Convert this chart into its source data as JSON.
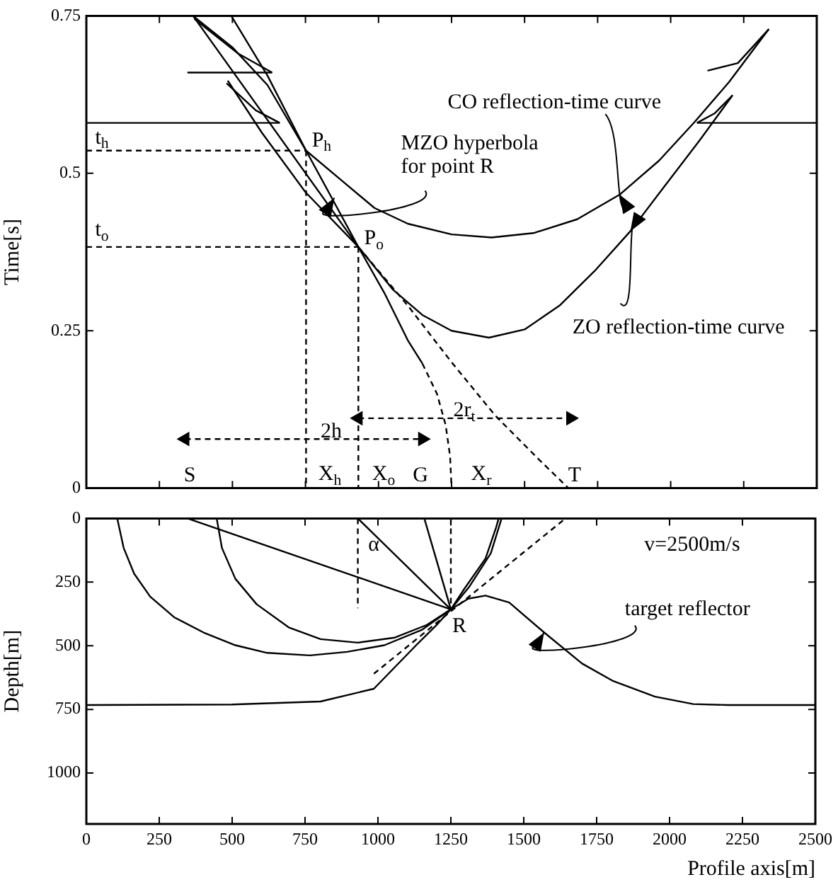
{
  "chart_data": [
    {
      "type": "line",
      "ylabel": "Time[s]",
      "xlim": [
        0,
        2500
      ],
      "xticks": [
        0,
        250,
        500,
        750,
        1000,
        1250,
        1500,
        1750,
        2000,
        2250,
        2500
      ],
      "ylim": [
        0,
        0.75
      ],
      "yticks": [
        0,
        0.25,
        0.5,
        0.75
      ],
      "tick_labels": "y",
      "legend": false,
      "marker": "none",
      "line_style": "solid",
      "series": [
        {
          "color": "#000000",
          "x": [
            365,
            500,
            620,
            752,
            870,
            986,
            1100,
            1250,
            1387,
            1530,
            1680,
            1825,
            1960,
            2081,
            2200,
            2336
          ],
          "values": [
            0.75,
            0.7,
            0.64,
            0.536,
            0.49,
            0.445,
            0.42,
            0.403,
            0.398,
            0.405,
            0.427,
            0.466,
            0.52,
            0.581,
            0.645,
            0.729
          ]
        },
        {
          "color": "#000000",
          "x": [
            484,
            600,
            750,
            931,
            1050,
            1150,
            1250,
            1378,
            1500,
            1620,
            1740,
            1862,
            1980,
            2100,
            2212
          ],
          "values": [
            0.647,
            0.565,
            0.47,
            0.383,
            0.315,
            0.275,
            0.25,
            0.239,
            0.252,
            0.29,
            0.345,
            0.408,
            0.48,
            0.553,
            0.624
          ]
        },
        {
          "color": "#000000",
          "x": [
            496,
            620,
            752,
            840,
            931,
            1020,
            1100,
            1150
          ],
          "values": [
            0.75,
            0.655,
            0.536,
            0.461,
            0.383,
            0.31,
            0.235,
            0.198
          ]
        },
        {
          "color": "#000000",
          "line_style": "dashed",
          "x": [
            1150,
            1200,
            1230,
            1245,
            1250
          ],
          "values": [
            0.198,
            0.15,
            0.1,
            0.05,
            0
          ]
        },
        {
          "color": "#000000",
          "x": [
            365,
            931
          ],
          "values": [
            0.75,
            0.383
          ]
        },
        {
          "color": "#000000",
          "line_style": "dashed",
          "x": [
            931,
            1100,
            1250,
            1400,
            1550,
            1650
          ],
          "values": [
            0.383,
            0.29,
            0.2,
            0.115,
            0.045,
            0
          ]
        },
        {
          "color": "#000000",
          "x": [
            0,
            662
          ],
          "values": [
            0.58,
            0.58
          ]
        },
        {
          "color": "#000000",
          "x": [
            480,
            580,
            662
          ],
          "values": [
            0.643,
            0.6,
            0.58
          ]
        },
        {
          "color": "#000000",
          "x": [
            346,
            636
          ],
          "values": [
            0.66,
            0.66
          ]
        },
        {
          "color": "#000000",
          "x": [
            370,
            520,
            636
          ],
          "values": [
            0.745,
            0.69,
            0.66
          ]
        },
        {
          "color": "#000000",
          "x": [
            2090,
            2500
          ],
          "values": [
            0.58,
            0.58
          ]
        },
        {
          "color": "#000000",
          "x": [
            2090,
            2150,
            2212
          ],
          "values": [
            0.58,
            0.595,
            0.624
          ]
        },
        {
          "color": "#000000",
          "x": [
            2126,
            2230,
            2336
          ],
          "values": [
            0.663,
            0.675,
            0.729
          ]
        },
        {
          "color": "#000000",
          "line_style": "dashed",
          "x": [
            0,
            752
          ],
          "values": [
            0.536,
            0.536
          ]
        },
        {
          "color": "#000000",
          "line_style": "dashed",
          "x": [
            752,
            752
          ],
          "values": [
            0.536,
            0
          ]
        },
        {
          "color": "#000000",
          "line_style": "dashed",
          "x": [
            0,
            931
          ],
          "values": [
            0.383,
            0.383
          ]
        },
        {
          "color": "#000000",
          "line_style": "dashed",
          "x": [
            931,
            931
          ],
          "values": [
            0.383,
            0
          ]
        },
        {
          "color": "#000000",
          "line_style": "dashed",
          "marker": "triangle",
          "x": [
            338,
            1150
          ],
          "values": [
            0.078,
            0.078
          ]
        },
        {
          "color": "#000000",
          "line_style": "dashed",
          "marker": "triangle",
          "x": [
            931,
            1657
          ],
          "values": [
            0.111,
            0.111
          ]
        }
      ],
      "annotations": [
        {
          "text": "CO reflection-time curve",
          "x": 1825,
          "y": 0.466
        },
        {
          "text": "MZO hyperbola\nfor point R",
          "x": 849,
          "y": 0.461
        },
        {
          "text": "ZO reflection-time curve",
          "x": 1862,
          "y": 0.408
        },
        {
          "text": "t$_{h}$",
          "x": 0,
          "y": 0.536
        },
        {
          "text": "t$_{o}$",
          "x": 0,
          "y": 0.383
        },
        {
          "text": "P$_{h}$",
          "x": 752,
          "y": 0.536
        },
        {
          "text": "P$_{o}$",
          "x": 931,
          "y": 0.383
        },
        "S",
        "X$_{h}$",
        "X$_{o}$",
        "G",
        "X$_{r}$",
        "T",
        "2h",
        "2r$_{t}$"
      ]
    },
    {
      "type": "line",
      "xlabel": "Profile axis[m]",
      "ylabel": "Depth[m]",
      "xlim": [
        0,
        2500
      ],
      "xticks": [
        0,
        250,
        500,
        750,
        1000,
        1250,
        1500,
        1750,
        2000,
        2250,
        2500
      ],
      "ylim": [
        1200,
        0
      ],
      "yticks": [
        0,
        250,
        500,
        750,
        1000
      ],
      "legend": false,
      "marker": "none",
      "line_style": "solid",
      "series": [
        {
          "color": "#000000",
          "x": [
            0,
            500,
            803,
            986,
            1131,
            1200,
            1250,
            1310,
            1369,
            1450,
            1570,
            1700,
            1807,
            1950,
            2081,
            2200,
            2500
          ],
          "values": [
            733,
            731,
            719,
            669,
            498,
            420,
            357,
            315,
            303,
            330,
            448,
            570,
            639,
            700,
            729,
            733,
            733
          ]
        },
        {
          "color": "#000000",
          "x": [
            106,
            128,
            164,
            219,
            301,
            402,
            511,
            620,
            767,
            894,
            1022,
            1150,
            1250,
            1296,
            1369,
            1405,
            1414
          ],
          "values": [
            0,
            116,
            217,
            307,
            388,
            448,
            498,
            528,
            538,
            524,
            498,
            438,
            357,
            277,
            157,
            36,
            0
          ]
        },
        {
          "color": "#000000",
          "x": [
            447,
            465,
            511,
            584,
            694,
            803,
            931,
            1058,
            1168,
            1250,
            1314,
            1387,
            1424
          ],
          "values": [
            0,
            116,
            237,
            337,
            428,
            474,
            488,
            468,
            418,
            357,
            267,
            137,
            0
          ]
        },
        {
          "color": "#000000",
          "x": [
            347,
            1250
          ],
          "values": [
            0,
            357
          ]
        },
        {
          "color": "#000000",
          "x": [
            931,
            1250
          ],
          "values": [
            0,
            357
          ]
        },
        {
          "color": "#000000",
          "x": [
            1159,
            1250
          ],
          "values": [
            0,
            357
          ]
        },
        {
          "color": "#000000",
          "line_style": "dashed",
          "x": [
            986,
            1643
          ],
          "values": [
            610,
            0
          ]
        },
        {
          "color": "#000000",
          "line_style": "dashed",
          "x": [
            931,
            931
          ],
          "values": [
            0,
            353
          ]
        },
        {
          "color": "#000000",
          "line_style": "dashed",
          "x": [
            1250,
            1250
          ],
          "values": [
            0,
            357
          ]
        }
      ],
      "annotations": [
        {
          "text": "target reflector",
          "x": 1570,
          "y": 448
        },
        "α",
        {
          "text": "R",
          "x": 1250,
          "y": 357
        },
        "v=2500m/s"
      ]
    }
  ]
}
